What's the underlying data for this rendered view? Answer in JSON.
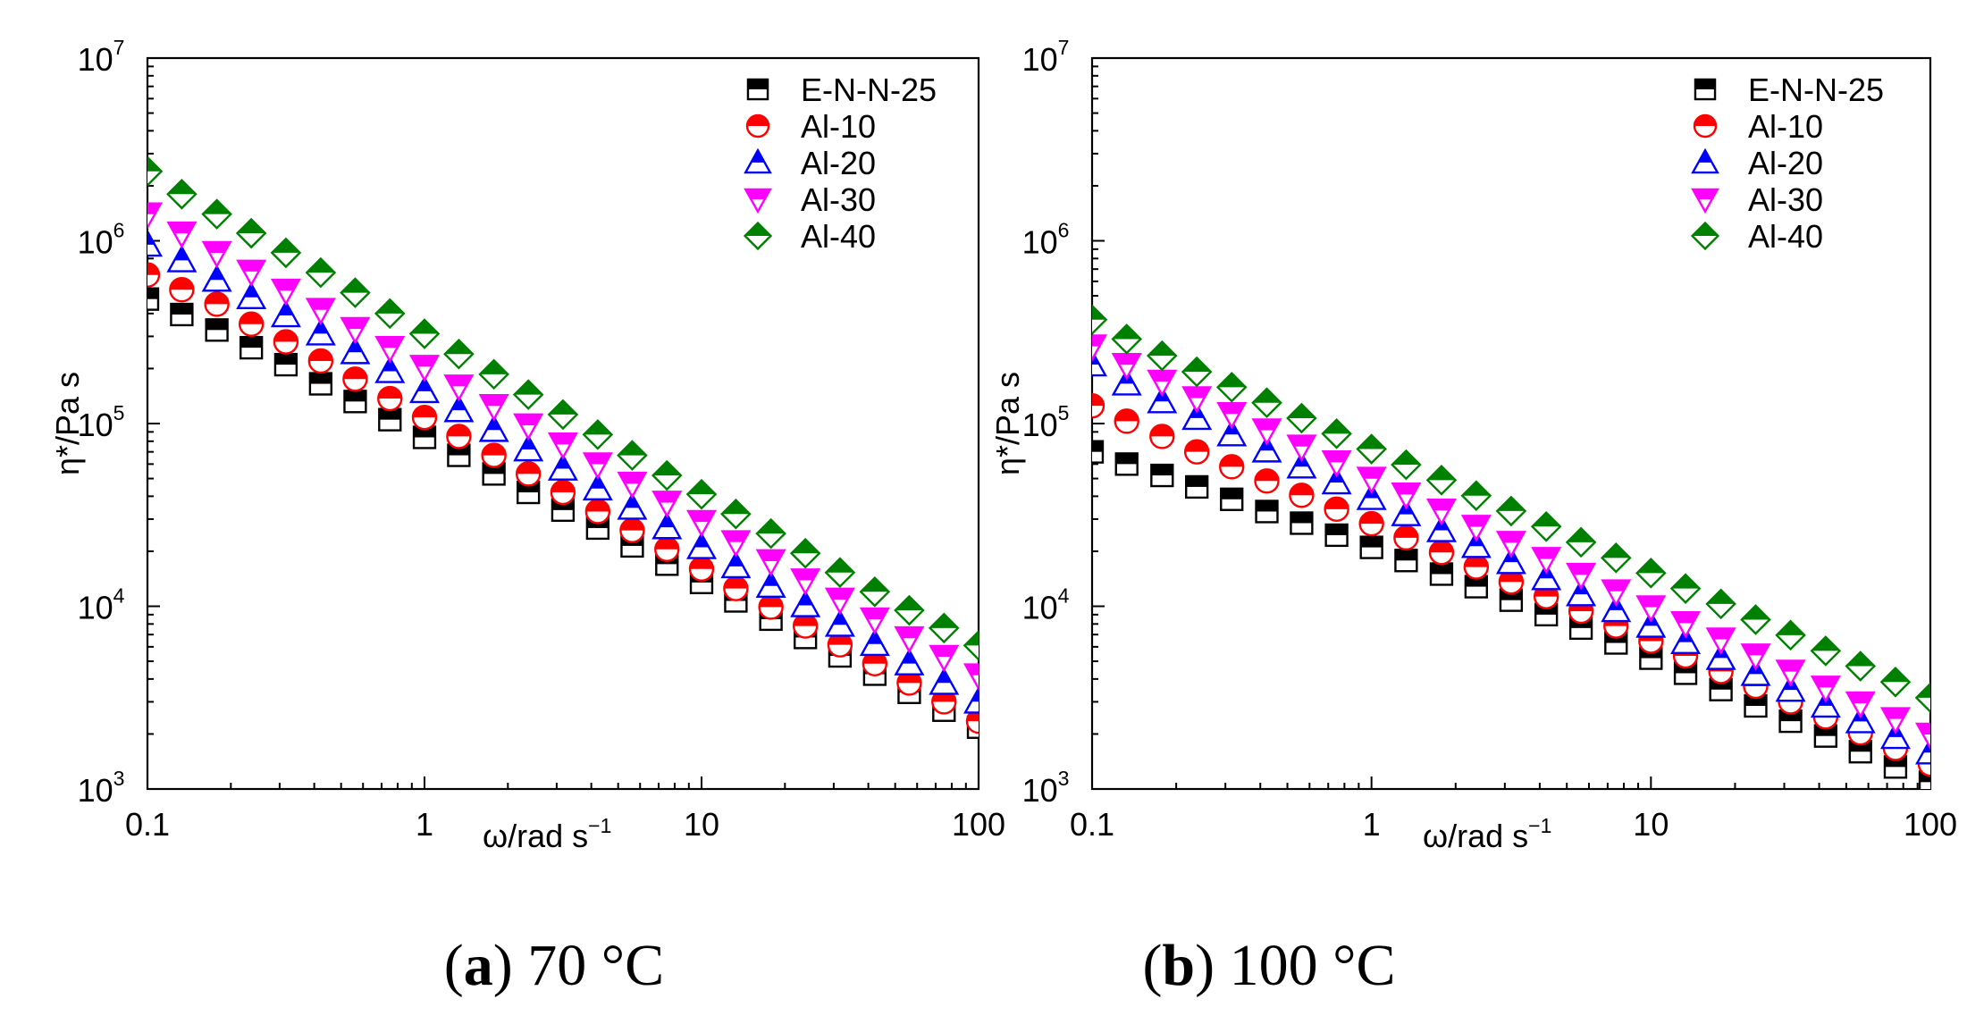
{
  "chart_data": [
    {
      "type": "scatter",
      "panel": "a",
      "caption_letter": "a",
      "caption_text": "70 °C",
      "xlabel": "ω/rad s",
      "xlabel_exp": "−1",
      "ylabel": "η*/Pa s",
      "xscale": "log",
      "yscale": "log",
      "xlim": [
        0.1,
        100
      ],
      "ylim": [
        1000,
        10000000
      ],
      "xticks": [
        {
          "value": 0.1,
          "label": "0.1"
        },
        {
          "value": 1,
          "label": "1"
        },
        {
          "value": 10,
          "label": "10"
        },
        {
          "value": 100,
          "label": "100"
        }
      ],
      "yticks": [
        {
          "value": 1000,
          "base": "10",
          "exp": "3"
        },
        {
          "value": 10000,
          "base": "10",
          "exp": "4"
        },
        {
          "value": 100000,
          "base": "10",
          "exp": "5"
        },
        {
          "value": 1000000,
          "base": "10",
          "exp": "6"
        },
        {
          "value": 10000000,
          "base": "10",
          "exp": "7"
        }
      ],
      "legend_position": "top-right",
      "x": [
        0.1,
        0.133,
        0.178,
        0.237,
        0.316,
        0.422,
        0.562,
        0.75,
        1,
        1.33,
        1.78,
        2.37,
        3.16,
        4.22,
        5.62,
        7.5,
        10,
        13.3,
        17.8,
        23.7,
        31.6,
        42.2,
        56.2,
        75,
        100
      ],
      "series": [
        {
          "name": "E-N-N-25",
          "marker": "square",
          "color": "#000000",
          "values": [
            480000,
            395000,
            325000,
            260000,
            210000,
            165000,
            132000,
            105000,
            84000,
            67000,
            53000,
            42000,
            33600,
            26800,
            21400,
            17000,
            13500,
            10700,
            8500,
            6750,
            5350,
            4250,
            3380,
            2700,
            2180
          ]
        },
        {
          "name": "Al-10",
          "marker": "circle",
          "color": "#ff0000",
          "values": [
            650000,
            540000,
            450000,
            350000,
            280000,
            220000,
            175000,
            137000,
            108000,
            85000,
            67000,
            53000,
            42000,
            33000,
            26000,
            20500,
            16000,
            12500,
            9900,
            7800,
            6150,
            4850,
            3800,
            3000,
            2350
          ]
        },
        {
          "name": "Al-20",
          "marker": "triangle-up",
          "color": "#0000ff",
          "values": [
            950000,
            780000,
            610000,
            490000,
            390000,
            310000,
            245000,
            193000,
            150000,
            118000,
            92000,
            72000,
            56500,
            44000,
            34500,
            27000,
            21000,
            16500,
            12900,
            10100,
            7900,
            6200,
            4850,
            3800,
            3000
          ]
        },
        {
          "name": "Al-30",
          "marker": "triangle-down",
          "color": "#ff00ff",
          "values": [
            1400000,
            1100000,
            860000,
            680000,
            535000,
            420000,
            330000,
            260000,
            205000,
            160000,
            125000,
            98000,
            77000,
            60000,
            47000,
            37000,
            29000,
            22500,
            17700,
            13900,
            10900,
            8500,
            6700,
            5300,
            4200
          ]
        },
        {
          "name": "Al-40",
          "marker": "diamond",
          "color": "#008000",
          "values": [
            2400000,
            1800000,
            1400000,
            1100000,
            860000,
            670000,
            520000,
            400000,
            310000,
            240000,
            186000,
            144000,
            112000,
            87000,
            67000,
            52000,
            41000,
            32000,
            25000,
            19500,
            15300,
            12000,
            9500,
            7600,
            6100
          ]
        }
      ]
    },
    {
      "type": "scatter",
      "panel": "b",
      "caption_letter": "b",
      "caption_text": "100 °C",
      "xlabel": "ω/rad s",
      "xlabel_exp": "−1",
      "ylabel": "η*/Pa s",
      "xscale": "log",
      "yscale": "log",
      "xlim": [
        0.1,
        100
      ],
      "ylim": [
        1000,
        10000000
      ],
      "xticks": [
        {
          "value": 0.1,
          "label": "0.1"
        },
        {
          "value": 1,
          "label": "1"
        },
        {
          "value": 10,
          "label": "10"
        },
        {
          "value": 100,
          "label": "100"
        }
      ],
      "yticks": [
        {
          "value": 1000,
          "base": "10",
          "exp": "3"
        },
        {
          "value": 10000,
          "base": "10",
          "exp": "4"
        },
        {
          "value": 100000,
          "base": "10",
          "exp": "5"
        },
        {
          "value": 1000000,
          "base": "10",
          "exp": "6"
        },
        {
          "value": 10000000,
          "base": "10",
          "exp": "7"
        }
      ],
      "legend_position": "top-right",
      "x": [
        0.1,
        0.133,
        0.178,
        0.237,
        0.316,
        0.422,
        0.562,
        0.75,
        1,
        1.33,
        1.78,
        2.37,
        3.16,
        4.22,
        5.62,
        7.5,
        10,
        13.3,
        17.8,
        23.7,
        31.6,
        42.2,
        56.2,
        75,
        100
      ],
      "series": [
        {
          "name": "E-N-N-25",
          "marker": "square",
          "color": "#000000",
          "values": [
            70000,
            60000,
            52000,
            45000,
            38500,
            33000,
            28500,
            24500,
            21000,
            17800,
            15000,
            12800,
            10800,
            9000,
            7600,
            6300,
            5200,
            4300,
            3500,
            2850,
            2350,
            1950,
            1600,
            1320,
            1090
          ]
        },
        {
          "name": "Al-10",
          "marker": "circle",
          "color": "#ff0000",
          "values": [
            125000,
            103000,
            85000,
            70000,
            58000,
            48500,
            40500,
            34000,
            28300,
            23700,
            19700,
            16400,
            13600,
            11300,
            9400,
            7800,
            6450,
            5350,
            4400,
            3650,
            3000,
            2480,
            2030,
            1670,
            1370
          ]
        },
        {
          "name": "Al-20",
          "marker": "triangle-up",
          "color": "#0000ff",
          "values": [
            210000,
            165000,
            132000,
            107000,
            87000,
            71000,
            58000,
            47500,
            39000,
            31800,
            26000,
            21300,
            17400,
            14200,
            11600,
            9500,
            7800,
            6350,
            5200,
            4250,
            3480,
            2850,
            2340,
            1920,
            1580
          ]
        },
        {
          "name": "Al-30",
          "marker": "triangle-down",
          "color": "#ff00ff",
          "values": [
            265000,
            210000,
            170000,
            138000,
            113000,
            92000,
            75000,
            61500,
            50000,
            41000,
            33500,
            27300,
            22300,
            18200,
            14900,
            12100,
            9900,
            8100,
            6600,
            5400,
            4400,
            3600,
            2950,
            2420,
            1990
          ]
        },
        {
          "name": "Al-40",
          "marker": "diamond",
          "color": "#008000",
          "values": [
            370000,
            290000,
            235000,
            192000,
            158000,
            130000,
            107000,
            88000,
            72500,
            59500,
            49000,
            40300,
            33200,
            27300,
            22400,
            18400,
            15200,
            12500,
            10300,
            8450,
            6950,
            5700,
            4700,
            3850,
            3160
          ]
        }
      ]
    }
  ]
}
